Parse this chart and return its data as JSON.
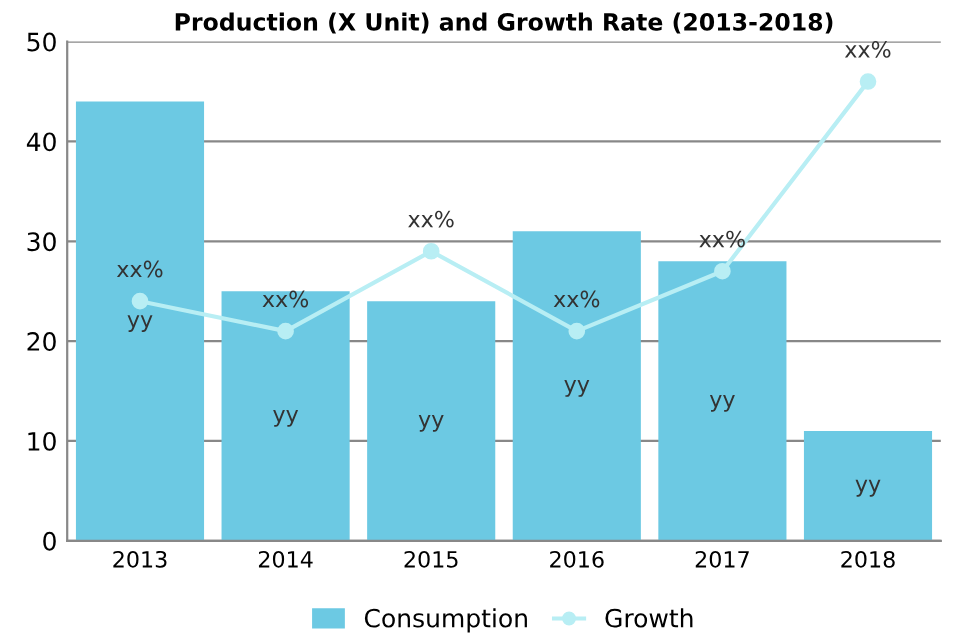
{
  "chart_data": {
    "type": "bar",
    "title": "Production (X Unit) and Growth Rate (2013-2018)",
    "categories": [
      "2013",
      "2014",
      "2015",
      "2016",
      "2017",
      "2018"
    ],
    "series": [
      {
        "name": "Consumption",
        "color": "#6cc9e3",
        "values": [
          44,
          25,
          24,
          31,
          28,
          11
        ],
        "value_labels": [
          "yy",
          "yy",
          "yy",
          "yy",
          "yy",
          "yy"
        ]
      },
      {
        "name": "Growth",
        "type": "line",
        "color": "#b8eef4",
        "values": [
          24,
          21,
          29,
          21,
          27,
          46
        ],
        "value_labels": [
          "xx%",
          "xx%",
          "xx%",
          "xx%",
          "xx%",
          "xx%"
        ],
        "marker": "circle"
      }
    ],
    "ylim": [
      0,
      50
    ],
    "yticks": [
      0,
      10,
      20,
      30,
      40,
      50
    ],
    "grid": "y",
    "legend": "bottom"
  }
}
